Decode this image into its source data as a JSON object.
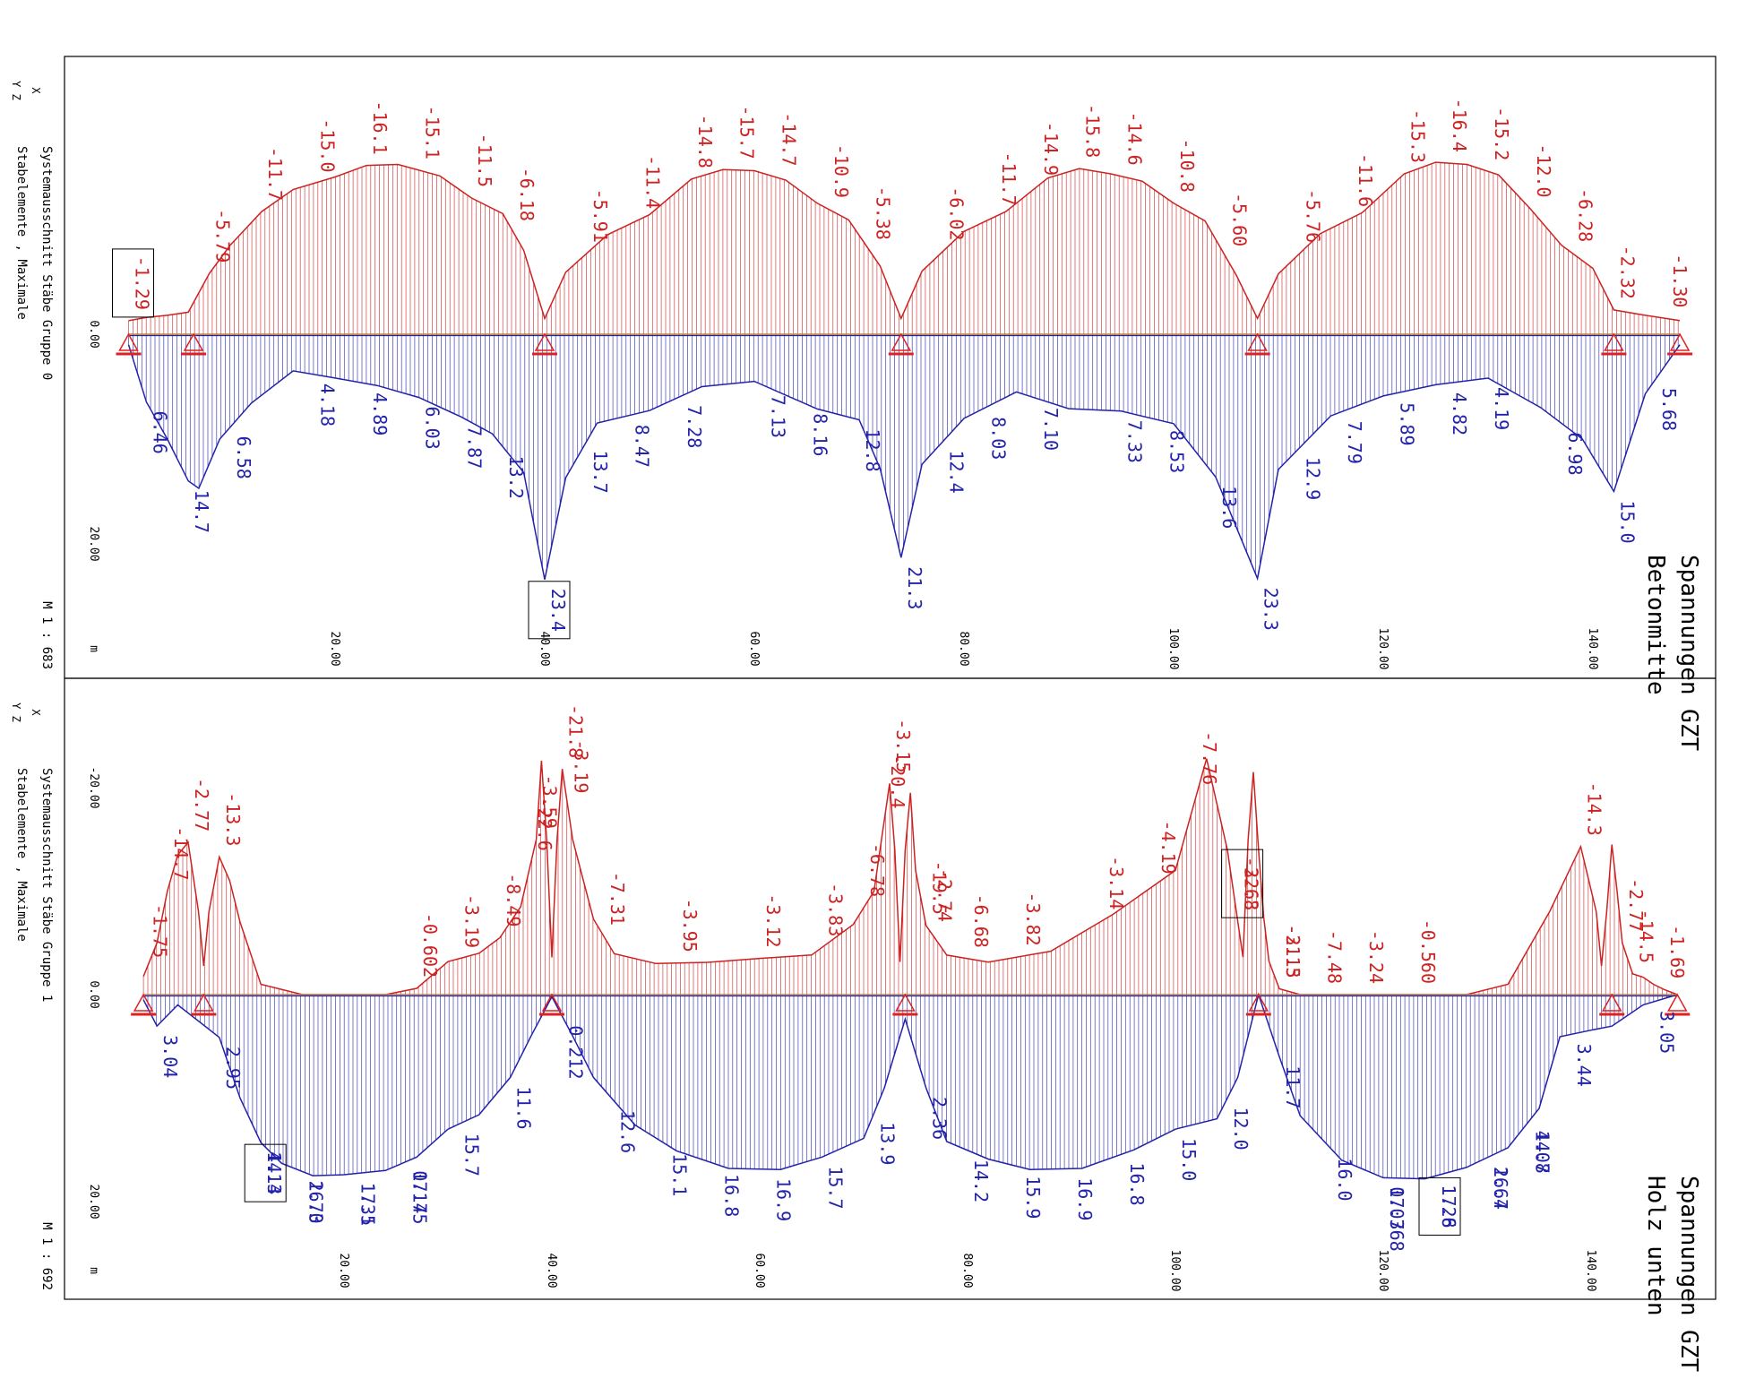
{
  "colors": {
    "compression": "#cc2222",
    "tension": "#2222aa",
    "frame": "#000000",
    "axis_text": "#000000",
    "support": "#dd2222"
  },
  "chart_data": [
    {
      "type": "area",
      "title": "Spannungen GZT",
      "subtitle": "Betonmitte",
      "view_label": "Systemausschnitt Stäbe Gruppe 0",
      "element_label": "Stabelemente , Maximale",
      "scale_label": "M 1 : 683",
      "coord_x": "X",
      "coord_yz": "Y Z",
      "unit_label": "m",
      "x_ticks": [
        "20.00",
        "40.00",
        "60.00",
        "80.00",
        "100.00",
        "120.00",
        "140.00"
      ],
      "y_ticks": [
        "0.00",
        "20.00"
      ],
      "xlim": [
        0,
        148
      ],
      "ylim": [
        -25,
        25
      ],
      "supports_x": [
        0.3,
        6.5,
        40.0,
        74.0,
        108.0,
        142.0,
        148.3
      ],
      "boxed_labels": [
        "-1.29",
        "23.4"
      ],
      "series": [
        {
          "name": "compression",
          "x": [
            0.3,
            2,
            4,
            6,
            8,
            10,
            13,
            16,
            20,
            23,
            26,
            30,
            33,
            36,
            38,
            40,
            42,
            46,
            50,
            54,
            57,
            60,
            63,
            66,
            69,
            72,
            74,
            76,
            80,
            84,
            88,
            91,
            94,
            97,
            100,
            103,
            106,
            108,
            110,
            114,
            118,
            122,
            125,
            128,
            131,
            134,
            137,
            140,
            142,
            145,
            148.3
          ],
          "y": [
            -1.29,
            -1.6,
            -1.8,
            -2.1,
            -5.79,
            -8.5,
            -11.7,
            -13.8,
            -15.0,
            -16.1,
            -16.2,
            -15.1,
            -13.0,
            -11.5,
            -8.0,
            -1.5,
            -5.91,
            -9.5,
            -11.4,
            -14.8,
            -15.7,
            -15.6,
            -14.7,
            -12.5,
            -10.9,
            -6.5,
            -1.5,
            -6.02,
            -9.8,
            -11.7,
            -14.9,
            -15.8,
            -15.3,
            -14.6,
            -12.5,
            -10.8,
            -5.6,
            -1.5,
            -5.76,
            -9.6,
            -11.6,
            -15.3,
            -16.4,
            -16.2,
            -15.2,
            -12.0,
            -8.5,
            -6.28,
            -2.32,
            -1.8,
            -1.3
          ]
        },
        {
          "name": "tension",
          "x": [
            0.3,
            2,
            4,
            6,
            7,
            9,
            12,
            16,
            20,
            24,
            28,
            32,
            35,
            38,
            40,
            42,
            45,
            50,
            55,
            60,
            66,
            70,
            72,
            74,
            76,
            80,
            85,
            90,
            95,
            100,
            104,
            108,
            110,
            115,
            120,
            125,
            130,
            135,
            139,
            142,
            145,
            148.3
          ],
          "y": [
            1.0,
            6.46,
            10.0,
            14.0,
            14.7,
            10.0,
            6.58,
            3.5,
            4.18,
            4.89,
            6.03,
            7.87,
            9.5,
            13.2,
            23.4,
            13.7,
            8.47,
            7.28,
            5.0,
            4.5,
            7.13,
            8.16,
            12.8,
            21.3,
            12.4,
            8.03,
            5.5,
            7.1,
            7.33,
            8.53,
            13.6,
            23.3,
            12.9,
            7.79,
            5.89,
            4.82,
            4.19,
            6.98,
            10.0,
            15.0,
            5.68,
            1.0
          ]
        }
      ],
      "labels_top": [
        {
          "x": 0.3,
          "text": "-1.29"
        },
        {
          "x": 8,
          "text": "-5.79"
        },
        {
          "x": 13,
          "text": "-11.7"
        },
        {
          "x": 18,
          "text": "-15.0"
        },
        {
          "x": 23,
          "text": "-16.1"
        },
        {
          "x": 28,
          "text": "-15.1"
        },
        {
          "x": 33,
          "text": "-11.5"
        },
        {
          "x": 37,
          "text": "-6.18"
        },
        {
          "x": 44,
          "text": "-5.91"
        },
        {
          "x": 49,
          "text": "-11.4"
        },
        {
          "x": 54,
          "text": "-14.8"
        },
        {
          "x": 58,
          "text": "-15.7"
        },
        {
          "x": 62,
          "text": "-14.7"
        },
        {
          "x": 67,
          "text": "-10.9"
        },
        {
          "x": 71,
          "text": "-5.38"
        },
        {
          "x": 78,
          "text": "-6.02"
        },
        {
          "x": 83,
          "text": "-11.7"
        },
        {
          "x": 87,
          "text": "-14.9"
        },
        {
          "x": 91,
          "text": "-15.8"
        },
        {
          "x": 95,
          "text": "-14.6"
        },
        {
          "x": 100,
          "text": "-10.8"
        },
        {
          "x": 105,
          "text": "-5.60"
        },
        {
          "x": 112,
          "text": "-5.76"
        },
        {
          "x": 117,
          "text": "-11.6"
        },
        {
          "x": 122,
          "text": "-15.3"
        },
        {
          "x": 126,
          "text": "-16.4"
        },
        {
          "x": 130,
          "text": "-15.2"
        },
        {
          "x": 134,
          "text": "-12.0"
        },
        {
          "x": 138,
          "text": "-6.28"
        },
        {
          "x": 142,
          "text": "-2.32"
        },
        {
          "x": 147,
          "text": "-1.30"
        }
      ],
      "labels_bottom": [
        {
          "x": 2,
          "text": "6.46"
        },
        {
          "x": 6,
          "text": "14.7"
        },
        {
          "x": 10,
          "text": "6.58"
        },
        {
          "x": 18,
          "text": "4.18"
        },
        {
          "x": 23,
          "text": "4.89"
        },
        {
          "x": 28,
          "text": "6.03"
        },
        {
          "x": 32,
          "text": "7.87"
        },
        {
          "x": 36,
          "text": "13.2"
        },
        {
          "x": 40,
          "text": "23.4"
        },
        {
          "x": 44,
          "text": "13.7"
        },
        {
          "x": 48,
          "text": "8.47"
        },
        {
          "x": 53,
          "text": "7.28"
        },
        {
          "x": 61,
          "text": "7.13"
        },
        {
          "x": 65,
          "text": "8.16"
        },
        {
          "x": 70,
          "text": "12.8"
        },
        {
          "x": 74,
          "text": "21.3"
        },
        {
          "x": 78,
          "text": "12.4"
        },
        {
          "x": 82,
          "text": "8.03"
        },
        {
          "x": 87,
          "text": "7.10"
        },
        {
          "x": 95,
          "text": "7.33"
        },
        {
          "x": 99,
          "text": "8.53"
        },
        {
          "x": 104,
          "text": "13.6"
        },
        {
          "x": 108,
          "text": "23.3"
        },
        {
          "x": 112,
          "text": "12.9"
        },
        {
          "x": 116,
          "text": "7.79"
        },
        {
          "x": 121,
          "text": "5.89"
        },
        {
          "x": 126,
          "text": "4.82"
        },
        {
          "x": 130,
          "text": "4.19"
        },
        {
          "x": 137,
          "text": "6.98"
        },
        {
          "x": 142,
          "text": "15.0"
        },
        {
          "x": 146,
          "text": "5.68"
        }
      ]
    },
    {
      "type": "area",
      "title": "Spannungen GZT",
      "subtitle": "Holz unten",
      "view_label": "Systemausschnitt Stäbe Gruppe 1",
      "element_label": "Stabelemente , Maximale",
      "scale_label": "M 1 : 692",
      "coord_x": "X",
      "coord_yz": "Y Z",
      "unit_label": "m",
      "x_ticks": [
        "20.00",
        "40.00",
        "60.00",
        "80.00",
        "100.00",
        "120.00",
        "140.00"
      ],
      "y_ticks": [
        "-20.00",
        "0.00",
        "20.00"
      ],
      "xlim": [
        0,
        148
      ],
      "ylim": [
        -30,
        25
      ],
      "supports_x": [
        0.7,
        6.5,
        40.0,
        74.0,
        108.0,
        142.0,
        148.3
      ],
      "boxed_labels": [
        "-22.8",
        "4.14",
        "17.8"
      ],
      "series": [
        {
          "name": "compression",
          "x": [
            0.7,
            2,
            3,
            4,
            5,
            6,
            6.5,
            7,
            8,
            9,
            10,
            12,
            16,
            20,
            24,
            27,
            30,
            33,
            35,
            37,
            38.5,
            39,
            39.5,
            40,
            40.5,
            41,
            42,
            44,
            46,
            50,
            55,
            60,
            65,
            69,
            71,
            72.5,
            73,
            73.5,
            74,
            74.5,
            75,
            76,
            78,
            82,
            88,
            94,
            100,
            103,
            105,
            106.5,
            107,
            107.5,
            108,
            108.5,
            109,
            110,
            112,
            116,
            120,
            124,
            128,
            132,
            136,
            139,
            140.5,
            141,
            141.5,
            142,
            142.5,
            143,
            144,
            145,
            146,
            147,
            148.3
          ],
          "y": [
            -1.75,
            -5.0,
            -10.0,
            -13.5,
            -14.7,
            -8.0,
            -2.77,
            -8.0,
            -13.3,
            -11.0,
            -7.0,
            -1.0,
            0.0,
            0.0,
            0.0,
            -0.602,
            -3.19,
            -4.0,
            -5.5,
            -8.49,
            -15.0,
            -22.6,
            -15.0,
            -3.59,
            -15.0,
            -21.8,
            -15.0,
            -7.31,
            -3.95,
            -3.0,
            -3.12,
            -3.5,
            -3.83,
            -6.78,
            -10.0,
            -20.4,
            -14.0,
            -3.15,
            -14.0,
            -19.5,
            -12.0,
            -6.68,
            -3.82,
            -3.14,
            -4.19,
            -7.76,
            -12.0,
            -22.8,
            -14.0,
            -3.63,
            -15.0,
            -21.5,
            -14.0,
            -7.48,
            -3.24,
            -0.56,
            0.0,
            0.0,
            0.0,
            0.0,
            0.0,
            -1.0,
            -8.0,
            -14.3,
            -8.0,
            -2.77,
            -8.0,
            -14.5,
            -10.0,
            -5.0,
            -2.0,
            -1.69,
            -1.0,
            -0.5,
            0.0
          ]
        },
        {
          "name": "tension",
          "x": [
            0.7,
            2,
            4,
            6.5,
            8,
            10,
            12,
            14,
            17,
            20,
            24,
            27,
            30,
            33,
            36,
            38,
            40,
            42,
            44,
            48,
            52,
            57,
            62,
            66,
            70,
            72,
            74,
            76,
            78,
            82,
            86,
            91,
            96,
            100,
            104,
            106,
            108,
            110,
            112,
            116,
            120,
            124,
            128,
            132,
            135,
            137,
            140,
            142,
            145,
            148.3
          ],
          "y": [
            0.5,
            3.04,
            1.0,
            2.95,
            4.14,
            10.0,
            14.3,
            16.3,
            17.5,
            17.4,
            17.0,
            15.7,
            13.0,
            11.6,
            8.0,
            4.0,
            0.212,
            4.0,
            8.0,
            12.6,
            15.1,
            16.8,
            16.9,
            15.7,
            13.9,
            9.0,
            2.36,
            9.0,
            14.2,
            15.9,
            16.9,
            16.8,
            15.0,
            13.0,
            12.0,
            8.0,
            0.0,
            6.0,
            11.7,
            16.0,
            17.7,
            17.8,
            16.7,
            14.8,
            11.0,
            4.07,
            3.44,
            3.05,
            1.0,
            0.0
          ]
        }
      ],
      "labels_top": [
        {
          "x": 1,
          "text": "-1.75"
        },
        {
          "x": 3,
          "text": "-14.7"
        },
        {
          "x": 5,
          "text": "-2.77"
        },
        {
          "x": 8,
          "text": "-13.3"
        },
        {
          "x": 27,
          "text": "-0.602"
        },
        {
          "x": 31,
          "text": "-3.19"
        },
        {
          "x": 35,
          "text": "-8.49"
        },
        {
          "x": 38,
          "text": "-22.6"
        },
        {
          "x": 38.5,
          "text": "-3.59"
        },
        {
          "x": 41,
          "text": "-21.8"
        },
        {
          "x": 41.5,
          "text": "-3.19"
        },
        {
          "x": 45,
          "text": "-7.31"
        },
        {
          "x": 52,
          "text": "-3.95"
        },
        {
          "x": 60,
          "text": "-3.12"
        },
        {
          "x": 66,
          "text": "-3.83"
        },
        {
          "x": 70,
          "text": "-6.78"
        },
        {
          "x": 72,
          "text": "-20.4"
        },
        {
          "x": 72.5,
          "text": "-3.15"
        },
        {
          "x": 76,
          "text": "-19.5"
        },
        {
          "x": 76.5,
          "text": "-2.74"
        },
        {
          "x": 80,
          "text": "-6.68"
        },
        {
          "x": 85,
          "text": "-3.82"
        },
        {
          "x": 93,
          "text": "-3.14"
        },
        {
          "x": 98,
          "text": "-4.19"
        },
        {
          "x": 102,
          "text": "-7.76"
        },
        {
          "x": 106,
          "text": "-22.8"
        },
        {
          "x": 106,
          "text": "-3.63"
        },
        {
          "x": 110,
          "text": "-21.5"
        },
        {
          "x": 110,
          "text": "-3.13"
        },
        {
          "x": 114,
          "text": "-7.48"
        },
        {
          "x": 118,
          "text": "-3.24"
        },
        {
          "x": 123,
          "text": "-0.560"
        },
        {
          "x": 139,
          "text": "-14.3"
        },
        {
          "x": 143,
          "text": "-2.77"
        },
        {
          "x": 144,
          "text": "-14.5"
        },
        {
          "x": 147,
          "text": "-1.69"
        }
      ],
      "labels_bottom": [
        {
          "x": 2,
          "text": "3.04"
        },
        {
          "x": 8,
          "text": "2.95"
        },
        {
          "x": 12,
          "text": "4.14"
        },
        {
          "x": 12,
          "text": "14.3"
        },
        {
          "x": 16,
          "text": "2.70"
        },
        {
          "x": 16,
          "text": "16.3"
        },
        {
          "x": 21,
          "text": "1.31"
        },
        {
          "x": 21,
          "text": "17.5"
        },
        {
          "x": 26,
          "text": "0.175"
        },
        {
          "x": 26,
          "text": "17.4"
        },
        {
          "x": 31,
          "text": "15.7"
        },
        {
          "x": 36,
          "text": "11.6"
        },
        {
          "x": 41,
          "text": "0.212"
        },
        {
          "x": 46,
          "text": "12.6"
        },
        {
          "x": 51,
          "text": "15.1"
        },
        {
          "x": 56,
          "text": "16.8"
        },
        {
          "x": 61,
          "text": "16.9"
        },
        {
          "x": 66,
          "text": "15.7"
        },
        {
          "x": 71,
          "text": "13.9"
        },
        {
          "x": 76,
          "text": "2.36"
        },
        {
          "x": 80,
          "text": "14.2"
        },
        {
          "x": 85,
          "text": "15.9"
        },
        {
          "x": 90,
          "text": "16.9"
        },
        {
          "x": 95,
          "text": "16.8"
        },
        {
          "x": 100,
          "text": "15.0"
        },
        {
          "x": 105,
          "text": "12.0"
        },
        {
          "x": 110,
          "text": "11.7"
        },
        {
          "x": 115,
          "text": "16.0"
        },
        {
          "x": 120,
          "text": "0.0368"
        },
        {
          "x": 120,
          "text": "17.7"
        },
        {
          "x": 125,
          "text": "1.26"
        },
        {
          "x": 125,
          "text": "17.8"
        },
        {
          "x": 130,
          "text": "2.64"
        },
        {
          "x": 130,
          "text": "16.7"
        },
        {
          "x": 134,
          "text": "4.07"
        },
        {
          "x": 134,
          "text": "14.8"
        },
        {
          "x": 138,
          "text": "3.44"
        },
        {
          "x": 146,
          "text": "3.05"
        }
      ]
    }
  ]
}
